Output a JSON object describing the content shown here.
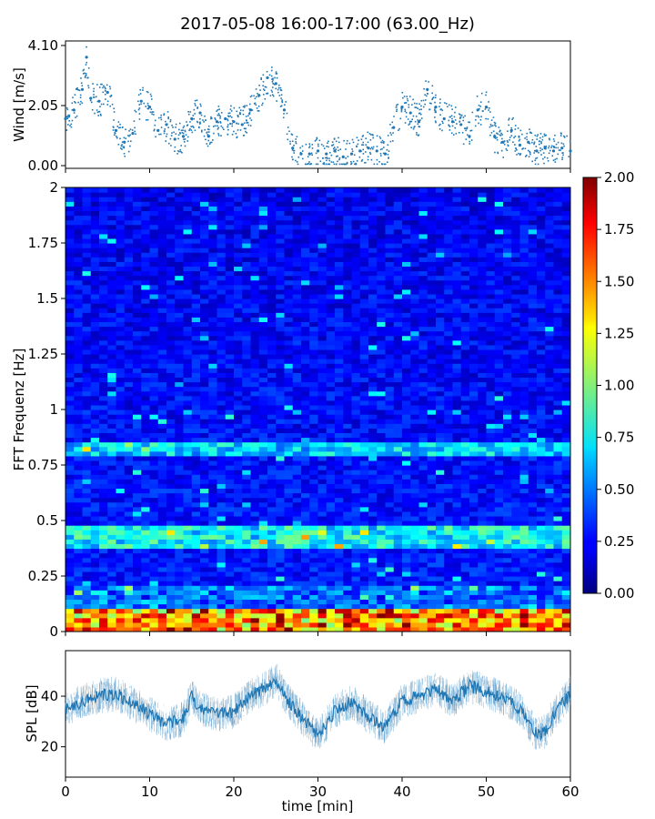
{
  "title": "2017-05-08 16:00-17:00 (63.00_Hz)",
  "colors": {
    "series": "#1f77b4",
    "axis": "#000000"
  },
  "chart_data": [
    {
      "id": "wind",
      "type": "scatter",
      "ylabel": "Wind [m/s]",
      "xlim": [
        0,
        60
      ],
      "ylim": [
        0,
        4.1
      ],
      "yticks": [
        0.0,
        2.05,
        4.1
      ],
      "ytick_labels": [
        "0.00",
        "2.05",
        "4.10"
      ],
      "series": [
        {
          "name": "wind",
          "x": [
            0,
            1,
            2,
            2.5,
            3,
            4,
            5,
            6,
            7,
            8,
            9,
            10,
            11,
            12,
            13,
            14,
            15,
            16,
            17,
            18,
            19,
            20,
            21,
            22,
            23,
            24,
            25,
            26,
            27,
            28,
            29,
            30,
            31,
            32,
            33,
            34,
            35,
            36,
            37,
            38,
            39,
            40,
            41,
            42,
            43,
            44,
            45,
            46,
            47,
            48,
            49,
            50,
            51,
            52,
            53,
            54,
            55,
            56,
            57,
            58,
            59,
            60
          ],
          "y": [
            1.6,
            1.9,
            2.6,
            3.7,
            2.3,
            2.2,
            2.5,
            1.2,
            0.8,
            1.1,
            2.2,
            2.0,
            1.2,
            1.4,
            0.9,
            1.0,
            1.6,
            1.8,
            1.0,
            1.5,
            1.6,
            1.5,
            1.4,
            1.9,
            2.4,
            3.0,
            2.8,
            1.9,
            0.6,
            0.4,
            0.4,
            0.5,
            0.4,
            0.5,
            0.3,
            0.4,
            0.5,
            0.6,
            0.5,
            0.4,
            1.3,
            2.0,
            1.8,
            1.5,
            2.6,
            2.0,
            1.6,
            1.5,
            1.4,
            1.0,
            1.9,
            2.0,
            1.0,
            0.8,
            1.2,
            0.7,
            0.8,
            0.5,
            0.6,
            0.5,
            0.6,
            0.5
          ]
        }
      ]
    },
    {
      "id": "spectrogram",
      "type": "heatmap",
      "ylabel": "FFT Frequenz [Hz]",
      "xlim": [
        0,
        60
      ],
      "ylim": [
        0,
        2
      ],
      "yticks": [
        0,
        0.25,
        0.5,
        0.75,
        1,
        1.25,
        1.5,
        1.75,
        2
      ],
      "colorbar": {
        "range": [
          0,
          2
        ],
        "ticks": [
          "0.00",
          "0.25",
          "0.50",
          "0.75",
          "1.00",
          "1.25",
          "1.50",
          "1.75",
          "2.00"
        ],
        "colormap": "jet"
      },
      "features": [
        {
          "label": "low-frequency band",
          "freq_range": [
            0,
            0.1
          ],
          "level": 1.6
        },
        {
          "label": "band",
          "freq_range": [
            0.38,
            0.47
          ],
          "level": 0.9
        },
        {
          "label": "band",
          "freq_range": [
            0.8,
            0.85
          ],
          "level": 0.8
        }
      ]
    },
    {
      "id": "spl",
      "type": "line",
      "ylabel": "SPL [dB]",
      "xlabel": "time [min]",
      "xlim": [
        0,
        60
      ],
      "ylim": [
        8,
        58
      ],
      "yticks": [
        20,
        40
      ],
      "xticks": [
        0,
        10,
        20,
        30,
        40,
        50,
        60
      ],
      "series": [
        {
          "name": "SPL",
          "x": [
            0,
            2,
            4,
            6,
            8,
            10,
            12,
            14,
            15,
            16,
            18,
            20,
            22,
            24,
            25,
            26,
            28,
            30,
            32,
            34,
            36,
            38,
            40,
            42,
            44,
            46,
            48,
            50,
            52,
            54,
            56,
            57,
            58,
            60
          ],
          "y": [
            35,
            38,
            40,
            41,
            37,
            33,
            29,
            31,
            40,
            35,
            33,
            34,
            40,
            44,
            47,
            40,
            32,
            24,
            34,
            38,
            32,
            28,
            38,
            40,
            43,
            38,
            44,
            42,
            39,
            35,
            25,
            26,
            33,
            41
          ]
        }
      ]
    }
  ]
}
